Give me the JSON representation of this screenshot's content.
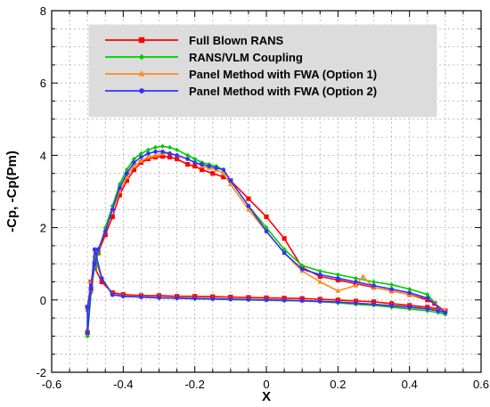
{
  "chart_data": {
    "type": "line",
    "xlabel": "X",
    "ylabel": "-Cp, -Cp(Pm)",
    "xlim": [
      -0.6,
      0.6
    ],
    "ylim": [
      -2,
      8
    ],
    "x_ticks": [
      "-0.6",
      "-0.4",
      "-0.2",
      "0",
      "0.2",
      "0.4",
      "0.6"
    ],
    "y_ticks": [
      "-2",
      "0",
      "2",
      "4",
      "6",
      "8"
    ],
    "grid": true,
    "legend_position": "top-center",
    "series": [
      {
        "name": "Full Blown RANS",
        "color": "#ff0000",
        "marker": "square",
        "x": [
          -0.5,
          -0.5,
          -0.49,
          -0.48,
          -0.47,
          -0.45,
          -0.43,
          -0.41,
          -0.39,
          -0.37,
          -0.35,
          -0.33,
          -0.31,
          -0.29,
          -0.27,
          -0.25,
          -0.22,
          -0.2,
          -0.18,
          -0.15,
          -0.12,
          -0.1,
          -0.05,
          0.0,
          0.05,
          0.1,
          0.15,
          0.2,
          0.25,
          0.3,
          0.35,
          0.4,
          0.45,
          0.47,
          0.5,
          0.48,
          0.45,
          0.4,
          0.35,
          0.3,
          0.25,
          0.2,
          0.15,
          0.1,
          0.05,
          0.0,
          -0.05,
          -0.1,
          -0.15,
          -0.2,
          -0.25,
          -0.3,
          -0.35,
          -0.4,
          -0.43,
          -0.46,
          -0.48,
          -0.49,
          -0.5
        ],
        "y": [
          -0.9,
          -0.2,
          0.5,
          1.0,
          1.3,
          1.8,
          2.3,
          2.9,
          3.3,
          3.6,
          3.8,
          3.9,
          3.95,
          3.97,
          3.95,
          3.9,
          3.75,
          3.7,
          3.6,
          3.5,
          3.4,
          3.3,
          2.8,
          2.3,
          1.7,
          0.9,
          0.65,
          0.55,
          0.45,
          0.35,
          0.25,
          0.15,
          0.0,
          -0.1,
          -0.3,
          -0.25,
          -0.2,
          -0.15,
          -0.1,
          -0.05,
          -0.03,
          0.0,
          0.02,
          0.04,
          0.05,
          0.06,
          0.07,
          0.08,
          0.09,
          0.1,
          0.1,
          0.12,
          0.12,
          0.15,
          0.2,
          0.5,
          0.9,
          0.3,
          -0.9
        ]
      },
      {
        "name": "RANS/VLM Coupling",
        "color": "#00cc00",
        "marker": "diamond",
        "x": [
          -0.5,
          -0.5,
          -0.49,
          -0.48,
          -0.47,
          -0.45,
          -0.43,
          -0.41,
          -0.39,
          -0.37,
          -0.35,
          -0.33,
          -0.31,
          -0.29,
          -0.27,
          -0.25,
          -0.22,
          -0.2,
          -0.18,
          -0.16,
          -0.14,
          -0.12,
          -0.1,
          -0.05,
          0.0,
          0.05,
          0.1,
          0.15,
          0.2,
          0.25,
          0.3,
          0.35,
          0.4,
          0.45,
          0.5,
          0.48,
          0.45,
          0.4,
          0.35,
          0.3,
          0.25,
          0.2,
          0.15,
          0.1,
          0.05,
          0.0,
          -0.05,
          -0.1,
          -0.15,
          -0.2,
          -0.25,
          -0.3,
          -0.35,
          -0.4,
          -0.43,
          -0.46,
          -0.48,
          -0.49,
          -0.5
        ],
        "y": [
          -1.0,
          -0.3,
          0.4,
          0.9,
          1.3,
          2.0,
          2.6,
          3.2,
          3.6,
          3.9,
          4.05,
          4.15,
          4.22,
          4.25,
          4.22,
          4.15,
          4.0,
          3.9,
          3.8,
          3.75,
          3.7,
          3.6,
          3.3,
          2.6,
          2.0,
          1.4,
          0.95,
          0.8,
          0.7,
          0.6,
          0.5,
          0.42,
          0.3,
          0.15,
          -0.4,
          -0.35,
          -0.3,
          -0.25,
          -0.2,
          -0.15,
          -0.12,
          -0.08,
          -0.05,
          -0.03,
          -0.02,
          -0.01,
          0.0,
          0.01,
          0.02,
          0.03,
          0.05,
          0.06,
          0.08,
          0.1,
          0.15,
          0.6,
          1.2,
          0.2,
          -1.0
        ]
      },
      {
        "name": "Panel Method with FWA (Option 1)",
        "color": "#ff8c1a",
        "marker": "triangle",
        "x": [
          -0.5,
          -0.5,
          -0.49,
          -0.48,
          -0.47,
          -0.45,
          -0.43,
          -0.41,
          -0.39,
          -0.37,
          -0.35,
          -0.33,
          -0.31,
          -0.29,
          -0.27,
          -0.25,
          -0.22,
          -0.2,
          -0.18,
          -0.16,
          -0.14,
          -0.12,
          -0.1,
          -0.05,
          0.0,
          0.05,
          0.1,
          0.15,
          0.2,
          0.25,
          0.27,
          0.3,
          0.35,
          0.4,
          0.45,
          0.5,
          0.48,
          0.45,
          0.4,
          0.35,
          0.3,
          0.25,
          0.2,
          0.15,
          0.1,
          0.05,
          0.0,
          -0.05,
          -0.1,
          -0.15,
          -0.2,
          -0.25,
          -0.3,
          -0.35,
          -0.4,
          -0.43,
          -0.46,
          -0.48,
          -0.49,
          -0.5
        ],
        "y": [
          -0.8,
          -0.2,
          0.5,
          1.0,
          1.4,
          1.9,
          2.5,
          3.0,
          3.4,
          3.7,
          3.85,
          3.95,
          4.0,
          4.05,
          4.05,
          4.0,
          3.9,
          3.8,
          3.7,
          3.65,
          3.6,
          3.5,
          3.2,
          2.5,
          1.9,
          1.3,
          0.8,
          0.5,
          0.25,
          0.4,
          0.65,
          0.35,
          0.25,
          0.15,
          0.05,
          -0.3,
          -0.28,
          -0.25,
          -0.2,
          -0.15,
          -0.12,
          -0.08,
          -0.05,
          -0.03,
          -0.02,
          0.0,
          0.01,
          0.02,
          0.03,
          0.04,
          0.05,
          0.06,
          0.07,
          0.09,
          0.12,
          0.15,
          0.6,
          1.4,
          0.3,
          -0.8
        ]
      },
      {
        "name": "Panel Method with FWA (Option 2)",
        "color": "#3333ff",
        "marker": "circle",
        "x": [
          -0.5,
          -0.5,
          -0.49,
          -0.48,
          -0.47,
          -0.45,
          -0.43,
          -0.41,
          -0.39,
          -0.37,
          -0.35,
          -0.33,
          -0.31,
          -0.29,
          -0.27,
          -0.25,
          -0.22,
          -0.2,
          -0.18,
          -0.16,
          -0.14,
          -0.12,
          -0.1,
          -0.05,
          0.0,
          0.05,
          0.1,
          0.15,
          0.2,
          0.25,
          0.3,
          0.35,
          0.4,
          0.45,
          0.5,
          0.48,
          0.45,
          0.4,
          0.35,
          0.3,
          0.25,
          0.2,
          0.15,
          0.1,
          0.05,
          0.0,
          -0.05,
          -0.1,
          -0.15,
          -0.2,
          -0.25,
          -0.3,
          -0.35,
          -0.4,
          -0.43,
          -0.46,
          -0.48,
          -0.49,
          -0.5
        ],
        "y": [
          -0.9,
          -0.2,
          0.4,
          1.0,
          1.4,
          1.9,
          2.5,
          3.1,
          3.5,
          3.8,
          3.95,
          4.05,
          4.1,
          4.1,
          4.05,
          4.0,
          3.9,
          3.8,
          3.75,
          3.7,
          3.65,
          3.6,
          3.3,
          2.6,
          1.9,
          1.3,
          0.85,
          0.7,
          0.6,
          0.5,
          0.4,
          0.3,
          0.2,
          0.05,
          -0.35,
          -0.3,
          -0.25,
          -0.2,
          -0.16,
          -0.12,
          -0.09,
          -0.06,
          -0.04,
          -0.02,
          -0.01,
          0.0,
          0.01,
          0.02,
          0.03,
          0.04,
          0.05,
          0.06,
          0.08,
          0.1,
          0.14,
          0.6,
          1.4,
          0.3,
          -0.9
        ]
      }
    ]
  }
}
